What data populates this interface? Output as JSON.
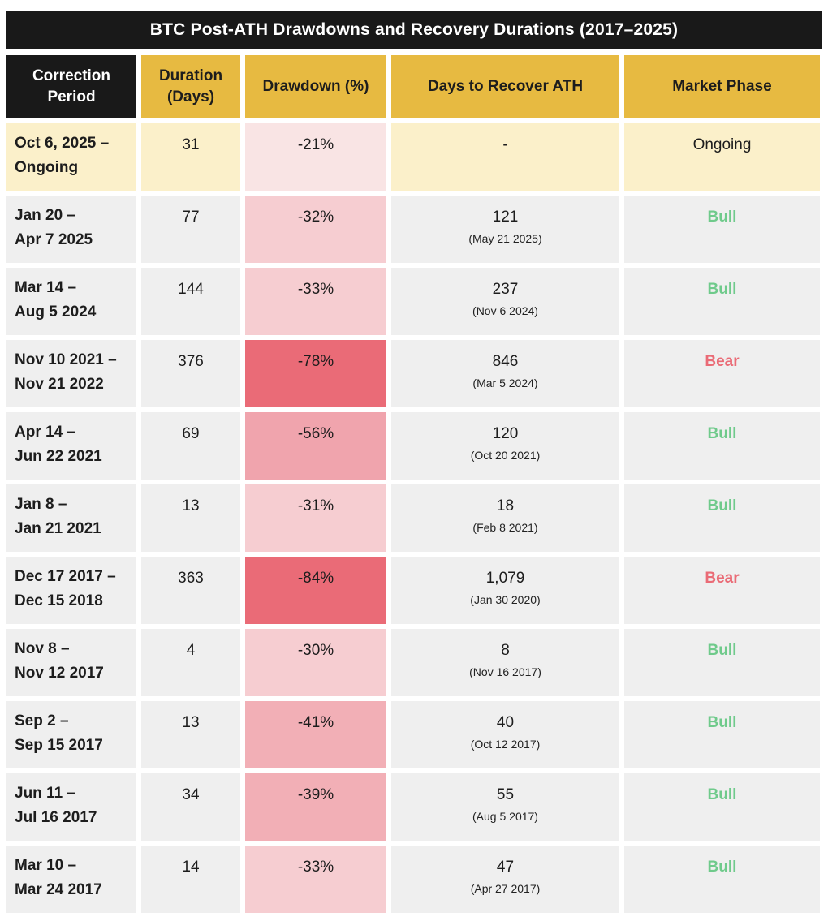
{
  "title": "BTC Post-ATH Drawdowns and Recovery Durations (2017–2025)",
  "colors": {
    "header_gold": "#e7ba41",
    "header_black": "#191919",
    "ongoing_row_cream": "#fbf0ca",
    "row_gray": "#efefef",
    "drawdown_scale": [
      "#f9e4e4",
      "#f6cdd1",
      "#f2afb6",
      "#f0a4ad",
      "#ea6b77"
    ],
    "bull_green": "#6fca8b",
    "bear_red": "#ea6b76"
  },
  "table": {
    "headers": {
      "period": "Correction Period",
      "duration": "Duration (Days)",
      "drawdown": "Drawdown (%)",
      "recover": "Days to Recover ATH",
      "phase": "Market Phase"
    },
    "rows": [
      {
        "period_line1": "Oct 6, 2025 –",
        "period_line2": "Ongoing",
        "duration": "31",
        "drawdown": "-21%",
        "recover": "-",
        "recover_date": "",
        "phase": "Ongoing"
      },
      {
        "period_line1": "Jan 20 –",
        "period_line2": "Apr 7 2025",
        "duration": "77",
        "drawdown": "-32%",
        "recover": "121",
        "recover_date": "(May 21 2025)",
        "phase": "Bull"
      },
      {
        "period_line1": "Mar 14 –",
        "period_line2": "Aug 5 2024",
        "duration": "144",
        "drawdown": "-33%",
        "recover": "237",
        "recover_date": "(Nov 6 2024)",
        "phase": "Bull"
      },
      {
        "period_line1": "Nov 10 2021 –",
        "period_line2": "Nov 21 2022",
        "duration": "376",
        "drawdown": "-78%",
        "recover": "846",
        "recover_date": "(Mar 5 2024)",
        "phase": "Bear"
      },
      {
        "period_line1": "Apr 14 –",
        "period_line2": "Jun 22 2021",
        "duration": "69",
        "drawdown": "-56%",
        "recover": "120",
        "recover_date": "(Oct 20 2021)",
        "phase": "Bull"
      },
      {
        "period_line1": "Jan 8 –",
        "period_line2": "Jan 21 2021",
        "duration": "13",
        "drawdown": "-31%",
        "recover": "18",
        "recover_date": "(Feb 8 2021)",
        "phase": "Bull"
      },
      {
        "period_line1": "Dec 17 2017 –",
        "period_line2": "Dec 15 2018",
        "duration": "363",
        "drawdown": "-84%",
        "recover": "1,079",
        "recover_date": "(Jan 30 2020)",
        "phase": "Bear"
      },
      {
        "period_line1": "Nov 8 –",
        "period_line2": "Nov 12 2017",
        "duration": "4",
        "drawdown": "-30%",
        "recover": "8",
        "recover_date": "(Nov 16 2017)",
        "phase": "Bull"
      },
      {
        "period_line1": "Sep 2 –",
        "period_line2": "Sep 15 2017",
        "duration": "13",
        "drawdown": "-41%",
        "recover": "40",
        "recover_date": "(Oct 12 2017)",
        "phase": "Bull"
      },
      {
        "period_line1": "Jun 11 –",
        "period_line2": "Jul 16 2017",
        "duration": "34",
        "drawdown": "-39%",
        "recover": "55",
        "recover_date": "(Aug 5 2017)",
        "phase": "Bull"
      },
      {
        "period_line1": "Mar 10 –",
        "period_line2": "Mar 24 2017",
        "duration": "14",
        "drawdown": "-33%",
        "recover": "47",
        "recover_date": "(Apr 27 2017)",
        "phase": "Bull"
      }
    ]
  },
  "chart_data": {
    "type": "table",
    "title": "BTC Post-ATH Drawdowns and Recovery Durations (2017–2025)",
    "columns": [
      "Correction Period",
      "Duration (Days)",
      "Drawdown (%)",
      "Days to Recover ATH",
      "Market Phase"
    ],
    "rows": [
      {
        "correction_period": "Oct 6, 2025 – Ongoing",
        "duration_days": 31,
        "drawdown_pct": -21,
        "days_to_recover_ath": null,
        "recovery_date": null,
        "market_phase": "Ongoing"
      },
      {
        "correction_period": "Jan 20 – Apr 7 2025",
        "duration_days": 77,
        "drawdown_pct": -32,
        "days_to_recover_ath": 121,
        "recovery_date": "May 21 2025",
        "market_phase": "Bull"
      },
      {
        "correction_period": "Mar 14 – Aug 5 2024",
        "duration_days": 144,
        "drawdown_pct": -33,
        "days_to_recover_ath": 237,
        "recovery_date": "Nov 6 2024",
        "market_phase": "Bull"
      },
      {
        "correction_period": "Nov 10 2021 – Nov 21 2022",
        "duration_days": 376,
        "drawdown_pct": -78,
        "days_to_recover_ath": 846,
        "recovery_date": "Mar 5 2024",
        "market_phase": "Bear"
      },
      {
        "correction_period": "Apr 14 – Jun 22 2021",
        "duration_days": 69,
        "drawdown_pct": -56,
        "days_to_recover_ath": 120,
        "recovery_date": "Oct 20 2021",
        "market_phase": "Bull"
      },
      {
        "correction_period": "Jan 8 – Jan 21 2021",
        "duration_days": 13,
        "drawdown_pct": -31,
        "days_to_recover_ath": 18,
        "recovery_date": "Feb 8 2021",
        "market_phase": "Bull"
      },
      {
        "correction_period": "Dec 17 2017 – Dec 15 2018",
        "duration_days": 363,
        "drawdown_pct": -84,
        "days_to_recover_ath": 1079,
        "recovery_date": "Jan 30 2020",
        "market_phase": "Bear"
      },
      {
        "correction_period": "Nov 8 – Nov 12 2017",
        "duration_days": 4,
        "drawdown_pct": -30,
        "days_to_recover_ath": 8,
        "recovery_date": "Nov 16 2017",
        "market_phase": "Bull"
      },
      {
        "correction_period": "Sep 2 – Sep 15 2017",
        "duration_days": 13,
        "drawdown_pct": -41,
        "days_to_recover_ath": 40,
        "recovery_date": "Oct 12 2017",
        "market_phase": "Bull"
      },
      {
        "correction_period": "Jun 11 – Jul 16 2017",
        "duration_days": 34,
        "drawdown_pct": -39,
        "days_to_recover_ath": 55,
        "recovery_date": "Aug 5 2017",
        "market_phase": "Bull"
      },
      {
        "correction_period": "Mar 10 – Mar 24 2017",
        "duration_days": 14,
        "drawdown_pct": -33,
        "days_to_recover_ath": 47,
        "recovery_date": "Apr 27 2017",
        "market_phase": "Bull"
      }
    ],
    "notes": "Drawdown cell shading intensity scales with drawdown magnitude; first row (ongoing correction) highlighted cream."
  }
}
